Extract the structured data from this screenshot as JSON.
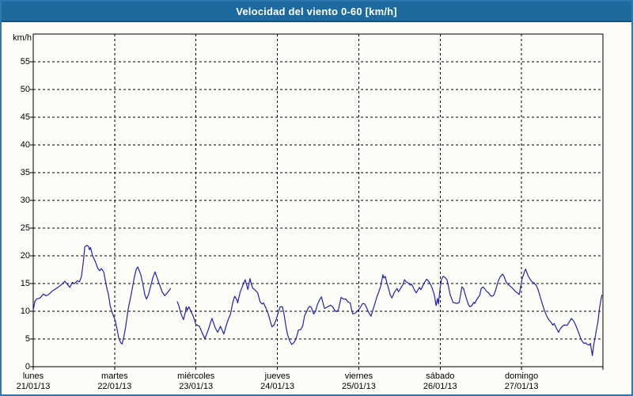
{
  "window": {
    "title": "Velocidad del viento 0-60 [km/h]"
  },
  "colors": {
    "titlebar_bg": "#1d6a9e",
    "titlebar_text": "#ffffff",
    "frame_border": "#2f77b0",
    "page_bg": "#fdfdf8",
    "line": "#2121b2",
    "grid": "#000000",
    "axis_text": "#000000"
  },
  "chart_data": {
    "type": "line",
    "title": "Velocidad del viento 0-60 [km/h]",
    "y_unit": "km/h",
    "ylabel": "",
    "xlabel": "",
    "ylim": [
      0,
      60
    ],
    "y_ticks": [
      0,
      5,
      10,
      15,
      20,
      25,
      30,
      35,
      40,
      45,
      50,
      55
    ],
    "grid": "dashed",
    "legend": "none",
    "x_hours_total": 168,
    "x_days": [
      {
        "weekday": "lunes",
        "date": "21/01/13"
      },
      {
        "weekday": "martes",
        "date": "22/01/13"
      },
      {
        "weekday": "miércoles",
        "date": "23/01/13"
      },
      {
        "weekday": "jueves",
        "date": "24/01/13"
      },
      {
        "weekday": "viernes",
        "date": "25/01/13"
      },
      {
        "weekday": "sábado",
        "date": "26/01/13"
      },
      {
        "weekday": "domingo",
        "date": "27/01/13"
      }
    ],
    "series_name": "velocidad_viento_kmh",
    "segments": [
      [
        [
          0,
          10.2
        ],
        [
          0.5,
          11.8
        ],
        [
          1,
          12.2
        ],
        [
          2,
          12.4
        ],
        [
          3,
          13.1
        ],
        [
          3.7,
          12.8
        ],
        [
          4.5,
          13.0
        ],
        [
          5.5,
          13.6
        ],
        [
          6.5,
          14.0
        ],
        [
          7.5,
          14.4
        ],
        [
          8.5,
          14.9
        ],
        [
          9.3,
          15.4
        ],
        [
          10,
          14.9
        ],
        [
          10.8,
          14.3
        ],
        [
          11.5,
          15.2
        ],
        [
          12.2,
          15.0
        ],
        [
          13,
          15.5
        ],
        [
          13.6,
          15.3
        ],
        [
          14.2,
          16.2
        ],
        [
          14.8,
          19.0
        ],
        [
          15.2,
          21.6
        ],
        [
          15.8,
          21.9
        ],
        [
          16.3,
          21.7
        ],
        [
          16.6,
          21.1
        ],
        [
          16.9,
          21.5
        ],
        [
          17.5,
          20.0
        ],
        [
          18.3,
          19.0
        ],
        [
          19,
          17.8
        ],
        [
          19.6,
          17.3
        ],
        [
          20.1,
          17.7
        ],
        [
          20.8,
          17.1
        ],
        [
          21.2,
          15.7
        ],
        [
          21.7,
          14.2
        ],
        [
          22.2,
          13.0
        ],
        [
          22.7,
          11.0
        ],
        [
          23.2,
          9.9
        ],
        [
          23.7,
          9.1
        ],
        [
          24.2,
          8.3
        ],
        [
          24.7,
          6.8
        ],
        [
          25.2,
          5.2
        ],
        [
          25.8,
          4.3
        ],
        [
          26.2,
          4.1
        ],
        [
          26.7,
          5.3
        ],
        [
          27.2,
          7.0
        ],
        [
          28,
          10.4
        ],
        [
          29,
          13.4
        ],
        [
          29.8,
          16.1
        ],
        [
          30.4,
          17.6
        ],
        [
          30.8,
          18.0
        ],
        [
          31.3,
          17.3
        ],
        [
          31.8,
          16.4
        ],
        [
          32.3,
          15.0
        ],
        [
          32.9,
          13.0
        ],
        [
          33.4,
          12.2
        ],
        [
          34,
          13.0
        ],
        [
          34.7,
          14.7
        ],
        [
          35.3,
          16.1
        ],
        [
          35.9,
          17.1
        ],
        [
          36.5,
          16.1
        ],
        [
          37.2,
          14.9
        ],
        [
          38,
          13.5
        ],
        [
          38.8,
          12.8
        ],
        [
          39.5,
          13.3
        ],
        [
          40,
          13.7
        ],
        [
          40.5,
          14.1
        ]
      ],
      [
        [
          42.5,
          11.7
        ],
        [
          43,
          10.9
        ],
        [
          43.5,
          9.7
        ],
        [
          44,
          8.9
        ],
        [
          44.3,
          8.5
        ],
        [
          44.9,
          9.9
        ],
        [
          45.1,
          10.8
        ],
        [
          45.4,
          10.2
        ],
        [
          45.9,
          10.8
        ],
        [
          46.5,
          10.0
        ],
        [
          47.1,
          9.2
        ],
        [
          47.6,
          8.3
        ],
        [
          48,
          7.6
        ],
        [
          48.6,
          7.4
        ],
        [
          49,
          7.3
        ],
        [
          49.6,
          6.4
        ],
        [
          50.2,
          5.6
        ],
        [
          50.6,
          5.1
        ],
        [
          51.1,
          5.8
        ],
        [
          51.8,
          7.0
        ],
        [
          52.4,
          8.2
        ],
        [
          52.7,
          8.7
        ],
        [
          53.1,
          8.0
        ],
        [
          53.7,
          7.0
        ],
        [
          54.4,
          6.2
        ],
        [
          55.2,
          7.3
        ],
        [
          56.2,
          5.9
        ],
        [
          56.8,
          7.2
        ],
        [
          57.5,
          8.5
        ],
        [
          58.2,
          9.5
        ],
        [
          58.8,
          11.5
        ],
        [
          59.4,
          12.7
        ],
        [
          60.1,
          12.0
        ],
        [
          60.3,
          11.5
        ],
        [
          61,
          13.4
        ],
        [
          61.8,
          14.7
        ],
        [
          62.5,
          15.7
        ],
        [
          63.1,
          14.4
        ],
        [
          63.3,
          13.9
        ],
        [
          63.9,
          15.9
        ],
        [
          64.4,
          14.7
        ],
        [
          64.7,
          14.2
        ],
        [
          65.3,
          13.9
        ],
        [
          66.2,
          13.3
        ],
        [
          66.9,
          11.7
        ],
        [
          67.5,
          11.3
        ],
        [
          67.9,
          11.5
        ],
        [
          68.6,
          10.6
        ],
        [
          69.3,
          9.5
        ],
        [
          70,
          8.0
        ],
        [
          70.4,
          7.2
        ],
        [
          71,
          7.5
        ],
        [
          71.7,
          8.6
        ],
        [
          72.3,
          9.9
        ],
        [
          72.8,
          10.8
        ],
        [
          73.5,
          10.8
        ],
        [
          74,
          9.4
        ],
        [
          74.5,
          7.3
        ],
        [
          75,
          5.8
        ],
        [
          75.6,
          4.7
        ],
        [
          76.2,
          4.0
        ],
        [
          76.8,
          4.3
        ],
        [
          77.4,
          4.9
        ],
        [
          77.9,
          5.9
        ],
        [
          78.2,
          6.6
        ],
        [
          78.9,
          6.7
        ],
        [
          79.5,
          7.4
        ],
        [
          80,
          9.2
        ],
        [
          80.6,
          9.9
        ],
        [
          81.1,
          10.6
        ],
        [
          81.5,
          10.9
        ],
        [
          82,
          10.7
        ],
        [
          82.7,
          9.5
        ],
        [
          83.2,
          9.9
        ],
        [
          83.8,
          11.2
        ],
        [
          84.4,
          12.0
        ],
        [
          85,
          12.6
        ],
        [
          85.5,
          11.4
        ],
        [
          85.9,
          10.5
        ],
        [
          86.5,
          10.7
        ],
        [
          87.1,
          10.9
        ],
        [
          87.7,
          11.1
        ],
        [
          88.3,
          10.8
        ],
        [
          88.9,
          10.2
        ],
        [
          89.4,
          9.9
        ],
        [
          90,
          10.3
        ],
        [
          90.5,
          11.7
        ],
        [
          90.8,
          12.5
        ],
        [
          91.5,
          12.2
        ],
        [
          92.2,
          12.2
        ],
        [
          92.8,
          11.7
        ],
        [
          93.5,
          11.5
        ],
        [
          94,
          9.9
        ],
        [
          94.3,
          9.5
        ],
        [
          95,
          9.7
        ],
        [
          95.7,
          10.1
        ],
        [
          96.3,
          10.5
        ],
        [
          96.9,
          11.2
        ],
        [
          97.2,
          11.4
        ],
        [
          97.8,
          11.3
        ],
        [
          98.4,
          10.5
        ],
        [
          99,
          9.7
        ],
        [
          99.6,
          9.1
        ],
        [
          100.1,
          10.1
        ],
        [
          100.7,
          11.3
        ],
        [
          101.3,
          12.5
        ],
        [
          101.9,
          13.5
        ],
        [
          102.5,
          14.6
        ],
        [
          103.1,
          16.6
        ],
        [
          103.4,
          16.0
        ],
        [
          103.8,
          16.3
        ],
        [
          104.3,
          15.1
        ],
        [
          104.8,
          14.1
        ],
        [
          105.3,
          12.9
        ],
        [
          105.8,
          12.4
        ],
        [
          106.4,
          13.3
        ],
        [
          107,
          13.9
        ],
        [
          107.3,
          14.1
        ],
        [
          107.7,
          13.5
        ],
        [
          108.3,
          14.1
        ],
        [
          109,
          14.8
        ],
        [
          109.5,
          15.7
        ],
        [
          110,
          15.3
        ],
        [
          110.6,
          15.1
        ],
        [
          111.2,
          14.7
        ],
        [
          111.6,
          14.9
        ],
        [
          112.2,
          14.1
        ],
        [
          112.9,
          13.3
        ],
        [
          113.5,
          13.9
        ],
        [
          113.9,
          14.3
        ],
        [
          114.3,
          13.9
        ],
        [
          114.9,
          14.6
        ],
        [
          115.5,
          15.3
        ],
        [
          116,
          15.8
        ],
        [
          116.5,
          15.5
        ],
        [
          117.1,
          14.9
        ],
        [
          117.7,
          14.1
        ],
        [
          118.3,
          12.9
        ],
        [
          118.8,
          11.0
        ],
        [
          119.2,
          12.3
        ],
        [
          119.5,
          11.3
        ],
        [
          120,
          14.3
        ],
        [
          120.4,
          15.8
        ],
        [
          120.9,
          16.3
        ],
        [
          121.4,
          16.1
        ],
        [
          122,
          15.7
        ],
        [
          122.5,
          14.3
        ],
        [
          123,
          12.9
        ],
        [
          123.8,
          11.6
        ],
        [
          124.4,
          11.5
        ],
        [
          125,
          11.4
        ],
        [
          125.6,
          11.6
        ],
        [
          126,
          12.9
        ],
        [
          126.4,
          14.4
        ],
        [
          126.9,
          14.1
        ],
        [
          127.3,
          13.2
        ],
        [
          127.9,
          12.0
        ],
        [
          128.4,
          11.1
        ],
        [
          128.8,
          10.8
        ],
        [
          129.3,
          11.0
        ],
        [
          129.9,
          11.6
        ],
        [
          130.2,
          11.4
        ],
        [
          130.7,
          12.0
        ],
        [
          131.2,
          12.5
        ],
        [
          131.7,
          12.9
        ],
        [
          132.1,
          14.1
        ],
        [
          132.6,
          14.4
        ],
        [
          133.1,
          14.1
        ],
        [
          133.7,
          13.6
        ],
        [
          134.3,
          13.3
        ],
        [
          134.9,
          12.8
        ],
        [
          135.4,
          12.7
        ],
        [
          135.9,
          13.0
        ],
        [
          136.5,
          14.1
        ],
        [
          137,
          15.2
        ],
        [
          137.6,
          16.1
        ],
        [
          138.1,
          16.5
        ],
        [
          138.4,
          16.7
        ],
        [
          138.9,
          16.2
        ],
        [
          139.3,
          15.5
        ],
        [
          139.9,
          14.9
        ],
        [
          140.5,
          14.6
        ],
        [
          141.1,
          14.3
        ],
        [
          141.7,
          13.9
        ],
        [
          142.3,
          13.5
        ],
        [
          142.8,
          13.3
        ],
        [
          143.3,
          13.0
        ],
        [
          143.7,
          14.3
        ],
        [
          144.2,
          16.0
        ],
        [
          144.6,
          16.6
        ],
        [
          144.9,
          17.2
        ],
        [
          145.2,
          17.6
        ],
        [
          145.6,
          16.9
        ],
        [
          146.1,
          16.2
        ],
        [
          146.6,
          15.7
        ],
        [
          147.1,
          15.3
        ],
        [
          147.7,
          15.1
        ],
        [
          148.4,
          14.6
        ],
        [
          148.9,
          13.9
        ],
        [
          149.3,
          13.0
        ],
        [
          149.8,
          12.0
        ],
        [
          150.3,
          11.0
        ],
        [
          150.7,
          10.2
        ],
        [
          151.1,
          9.6
        ],
        [
          151.6,
          8.9
        ],
        [
          152.1,
          8.4
        ],
        [
          152.7,
          8.0
        ],
        [
          153.2,
          7.5
        ],
        [
          153.6,
          7.8
        ],
        [
          154,
          7.3
        ],
        [
          154.4,
          6.8
        ],
        [
          154.9,
          6.2
        ],
        [
          155.4,
          6.8
        ],
        [
          155.9,
          7.2
        ],
        [
          156.5,
          7.5
        ],
        [
          157.5,
          7.5
        ],
        [
          158.1,
          8.1
        ],
        [
          158.4,
          8.4
        ],
        [
          158.7,
          8.7
        ],
        [
          159.3,
          8.3
        ],
        [
          159.8,
          7.7
        ],
        [
          160.3,
          7.0
        ],
        [
          160.8,
          6.2
        ],
        [
          161.2,
          5.5
        ],
        [
          161.6,
          4.9
        ],
        [
          162,
          4.5
        ],
        [
          162.4,
          4.2
        ],
        [
          162.9,
          4.3
        ],
        [
          163.4,
          4.0
        ],
        [
          163.9,
          3.9
        ],
        [
          164.3,
          4.2
        ],
        [
          164.9,
          2.0
        ],
        [
          165.3,
          4.0
        ],
        [
          165.6,
          4.9
        ],
        [
          166,
          6.4
        ],
        [
          166.5,
          8.0
        ],
        [
          167,
          10.6
        ],
        [
          167.4,
          12.0
        ],
        [
          167.7,
          12.9
        ]
      ]
    ]
  }
}
